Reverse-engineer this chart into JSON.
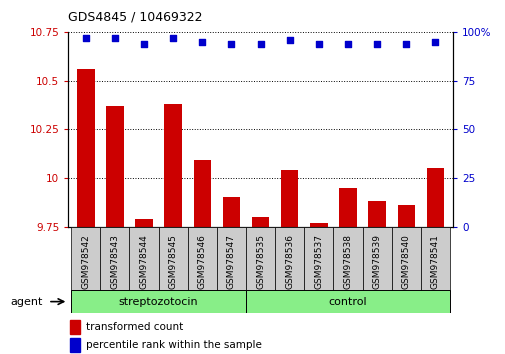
{
  "title": "GDS4845 / 10469322",
  "samples": [
    "GSM978542",
    "GSM978543",
    "GSM978544",
    "GSM978545",
    "GSM978546",
    "GSM978547",
    "GSM978535",
    "GSM978536",
    "GSM978537",
    "GSM978538",
    "GSM978539",
    "GSM978540",
    "GSM978541"
  ],
  "bar_values": [
    10.56,
    10.37,
    9.79,
    10.38,
    10.09,
    9.9,
    9.8,
    10.04,
    9.77,
    9.95,
    9.88,
    9.86,
    10.05
  ],
  "percentile_values": [
    97,
    97,
    94,
    97,
    95,
    94,
    94,
    96,
    94,
    94,
    94,
    94,
    95
  ],
  "ylim_left": [
    9.75,
    10.75
  ],
  "ylim_right": [
    0,
    100
  ],
  "yticks_left": [
    9.75,
    10.0,
    10.25,
    10.5,
    10.75
  ],
  "yticks_right": [
    0,
    25,
    50,
    75,
    100
  ],
  "ytick_labels_left": [
    "9.75",
    "10",
    "10.25",
    "10.5",
    "10.75"
  ],
  "ytick_labels_right": [
    "0",
    "25",
    "50",
    "75",
    "100%"
  ],
  "bar_color": "#cc0000",
  "dot_color": "#0000cc",
  "group1_label": "streptozotocin",
  "group2_label": "control",
  "group1_count": 6,
  "group2_count": 7,
  "group_bar_color": "#88ee88",
  "agent_label": "agent",
  "legend_bar_label": "transformed count",
  "legend_dot_label": "percentile rank within the sample",
  "tick_bg_color": "#cccccc",
  "bar_width": 0.6
}
